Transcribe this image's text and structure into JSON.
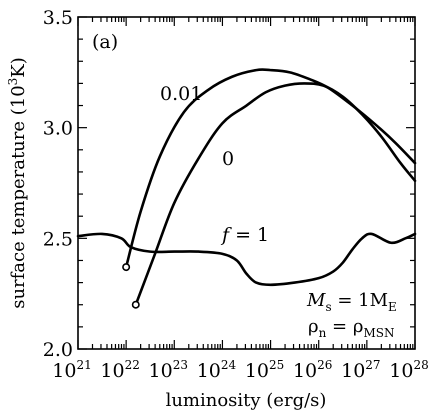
{
  "chart_data": {
    "type": "line",
    "panel_label": "(a)",
    "xlabel": "luminosity (erg/s)",
    "ylabel": "surface temperature (10",
    "ylabel_sup": "3",
    "ylabel_end": "K)",
    "x_scale": "log",
    "x_log_range": [
      21,
      28
    ],
    "ylim": [
      2.0,
      3.5
    ],
    "x_ticks": [
      {
        "base": "10",
        "exp": "21"
      },
      {
        "base": "10",
        "exp": "22"
      },
      {
        "base": "10",
        "exp": "23"
      },
      {
        "base": "10",
        "exp": "24"
      },
      {
        "base": "10",
        "exp": "25"
      },
      {
        "base": "10",
        "exp": "26"
      },
      {
        "base": "10",
        "exp": "27"
      },
      {
        "base": "10",
        "exp": "28"
      }
    ],
    "y_ticks": [
      "2.0",
      "2.5",
      "3.0",
      "3.5"
    ],
    "series": [
      {
        "name": "0.01",
        "start_marker": "open-circle",
        "log_x": [
          22.0,
          22.3,
          22.7,
          23.2,
          23.7,
          24.2,
          24.7,
          25.0,
          25.4,
          25.8,
          26.2,
          26.7,
          27.2,
          27.6,
          28.0
        ],
        "y": [
          2.37,
          2.62,
          2.87,
          3.07,
          3.17,
          3.23,
          3.26,
          3.26,
          3.25,
          3.22,
          3.18,
          3.1,
          3.01,
          2.93,
          2.84
        ]
      },
      {
        "name": "0",
        "start_marker": "open-circle",
        "log_x": [
          22.2,
          22.6,
          23.0,
          23.5,
          24.0,
          24.5,
          24.9,
          25.3,
          25.7,
          26.1,
          26.5,
          26.9,
          27.3,
          27.7,
          28.0
        ],
        "y": [
          2.2,
          2.43,
          2.66,
          2.86,
          3.02,
          3.1,
          3.16,
          3.19,
          3.2,
          3.19,
          3.14,
          3.06,
          2.96,
          2.84,
          2.76
        ]
      },
      {
        "name_prefix": "f",
        "name_suffix": " = 1",
        "log_x": [
          21.0,
          21.5,
          21.9,
          22.1,
          22.5,
          23.0,
          23.5,
          24.0,
          24.3,
          24.5,
          24.7,
          25.0,
          25.5,
          26.0,
          26.3,
          26.5,
          26.7,
          26.9,
          27.1,
          27.5,
          27.8,
          28.0
        ],
        "y": [
          2.51,
          2.52,
          2.5,
          2.46,
          2.44,
          2.44,
          2.44,
          2.43,
          2.4,
          2.34,
          2.3,
          2.29,
          2.3,
          2.32,
          2.35,
          2.39,
          2.45,
          2.5,
          2.52,
          2.48,
          2.5,
          2.52
        ]
      }
    ],
    "annotations": {
      "mass_symbol": "M",
      "mass_sub": "s",
      "mass_eq": " = 1M",
      "mass_eq_sub": "E",
      "rho_symbol": "ρ",
      "rho_sub": "n",
      "rho_eq": " = ρ",
      "rho_eq_sub": "MSN"
    }
  }
}
